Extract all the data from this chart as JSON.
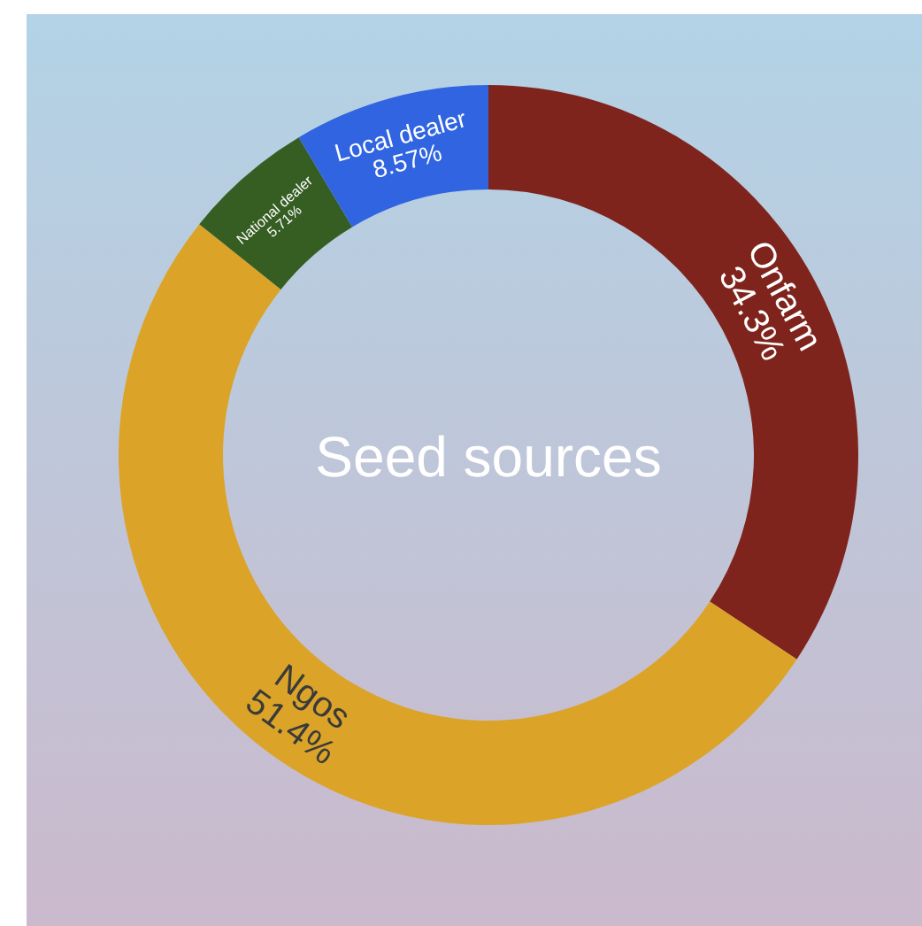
{
  "chart_data": {
    "type": "donut",
    "title": "Seed sources",
    "categories": [
      "Onfarm",
      "Ngos",
      "National dealer",
      "Local dealer"
    ],
    "values": [
      34.3,
      51.4,
      5.71,
      8.57
    ],
    "colors": [
      "#7f241c",
      "#dba428",
      "#365e23",
      "#3064e0"
    ],
    "value_labels": [
      "34.3%",
      "51.4%",
      "5.71%",
      "8.57%"
    ],
    "legend": false
  }
}
